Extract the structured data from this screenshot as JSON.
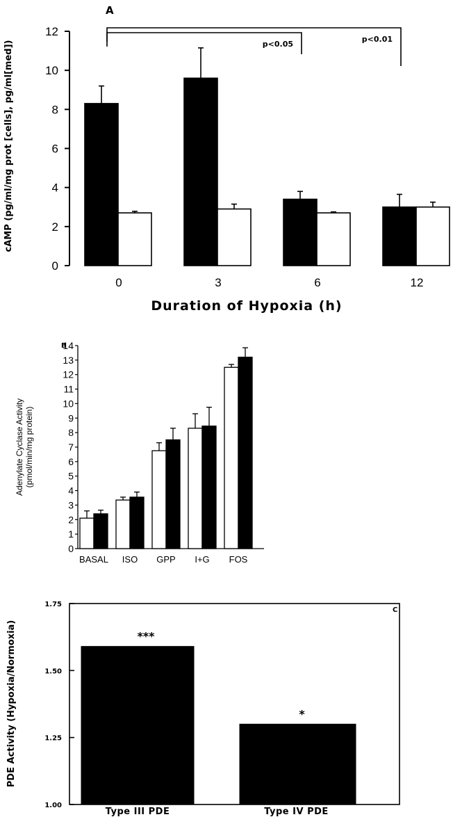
{
  "chart_data": [
    {
      "panel_label": "A",
      "type": "bar",
      "xlabel": "Duration of Hypoxia (h)",
      "ylabel": "cAMP (pg/ml/mg prot [cells], pg/ml[med])",
      "categories": [
        "0",
        "3",
        "6",
        "12"
      ],
      "ylim": [
        0,
        12
      ],
      "yticks": [
        0,
        2,
        4,
        6,
        8,
        10,
        12
      ],
      "series": [
        {
          "fill": "#000000",
          "values": [
            8.3,
            9.6,
            3.4,
            3.0
          ],
          "errors": [
            0.9,
            1.55,
            0.4,
            0.65
          ]
        },
        {
          "fill": "#ffffff",
          "values": [
            2.7,
            2.9,
            2.7,
            3.0
          ],
          "errors": [
            0.08,
            0.25,
            0.05,
            0.25
          ]
        }
      ],
      "annotations": [
        {
          "text": "p<0.05",
          "from": "0",
          "to": "6"
        },
        {
          "text": "p<0.01",
          "from": "0",
          "to": "12"
        }
      ],
      "grid": false,
      "legend": "none"
    },
    {
      "panel_label": "B",
      "type": "bar",
      "ylabel": "Adenylate Cyclase Activity (pmol/min/mg protein)",
      "ylabel_lines": [
        "Adenylate Cyclase Activity",
        "(pmol/min/mg protein)"
      ],
      "categories": [
        "BASAL",
        "ISO",
        "GPP",
        "I+G",
        "FOS"
      ],
      "ylim": [
        0,
        14
      ],
      "yticks": [
        0,
        1,
        2,
        3,
        4,
        5,
        6,
        7,
        8,
        9,
        10,
        11,
        12,
        13,
        14
      ],
      "series": [
        {
          "fill": "#ffffff",
          "values": [
            2.1,
            3.35,
            6.75,
            8.3,
            12.5
          ],
          "errors": [
            0.5,
            0.2,
            0.55,
            1.0,
            0.2
          ]
        },
        {
          "fill": "#000000",
          "values": [
            2.4,
            3.55,
            7.5,
            8.45,
            13.2
          ],
          "errors": [
            0.25,
            0.35,
            0.8,
            1.3,
            0.65
          ]
        }
      ],
      "grid": false,
      "legend": "none"
    },
    {
      "panel_label": "C",
      "type": "bar",
      "ylabel": "PDE Activity (Hypoxia/Normoxia)",
      "categories": [
        "Type III PDE",
        "Type IV PDE"
      ],
      "values": [
        1.59,
        1.3
      ],
      "ylim": [
        1.0,
        1.75
      ],
      "yticks": [
        "1.00",
        "1.25",
        "1.50",
        "1.75"
      ],
      "significance": [
        "***",
        "*"
      ],
      "grid": false,
      "legend": "none"
    }
  ]
}
